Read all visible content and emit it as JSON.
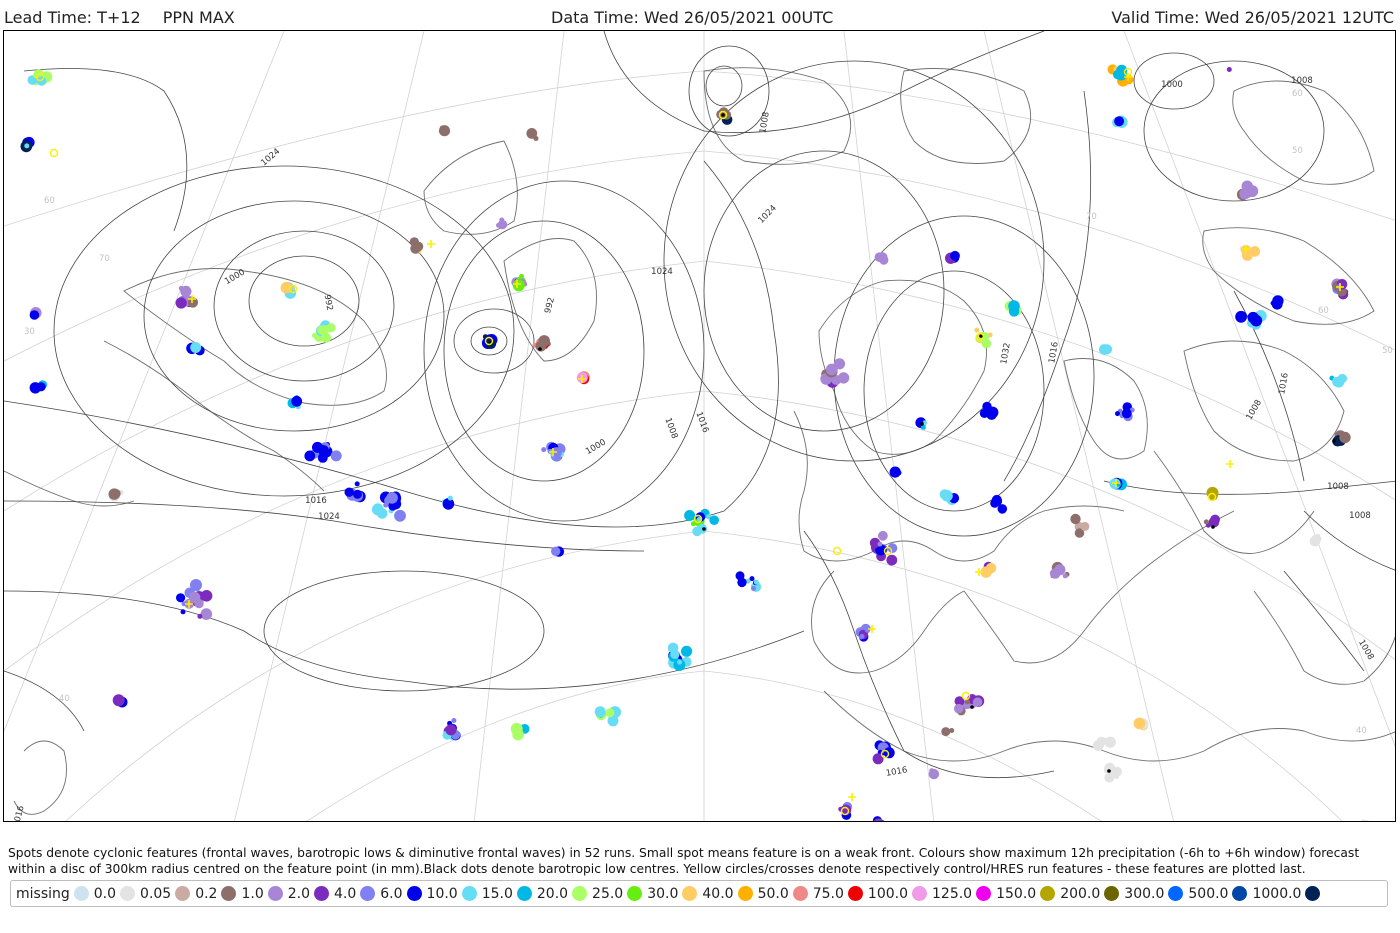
{
  "header": {
    "lead_time": "Lead Time: T+12",
    "product": "PPN MAX",
    "data_time": "Data Time: Wed 26/05/2021 00UTC",
    "valid_time": "Valid Time: Wed 26/05/2021 12UTC"
  },
  "map": {
    "isobar_labels": [
      "1024",
      "1000",
      "992",
      "1016",
      "1008",
      "992",
      "1000",
      "1008",
      "1016",
      "1024",
      "1032",
      "1024",
      "1008",
      "1000",
      "1008",
      "1016",
      "1016",
      "1008",
      "1008",
      "1024",
      "1016",
      "1008",
      "1016"
    ],
    "lat_labels": [
      "60",
      "70",
      "30",
      "40",
      "50",
      "60",
      "70",
      "60",
      "50",
      "40"
    ],
    "color_map": {
      "missing": "#cfe3ee",
      "0.0": "#e3e3e3",
      "0.05": "#c9aba2",
      "0.2": "#8c6f6a",
      "1.0": "#a886d6",
      "2.0": "#7b2cbf",
      "4.0": "#8080f0",
      "6.0": "#0000ee",
      "10.0": "#66ddf5",
      "15.0": "#00b8e6",
      "20.0": "#aaff66",
      "25.0": "#66ee11",
      "30.0": "#ffcc66",
      "40.0": "#ffb000",
      "50.0": "#f08888",
      "75.0": "#ee0000",
      "100.0": "#f09ae8",
      "125.0": "#ee00ee",
      "150.0": "#b3a600",
      "200.0": "#6b6400",
      "300.0": "#0066ff",
      "500.0": "#0047a6",
      "1000.0": "#002255"
    }
  },
  "caption": "Spots denote cyclonic features (frontal waves, barotropic lows & diminutive frontal waves) in 52 runs. Small spot means feature is on a weak front. Colours show maximum 12h precipitation (-6h to +6h window) forecast within a disc of 300km radius centred on the feature point (in mm).Black dots denote barotropic low centres. Yellow circles/crosses denote respectively control/HRES run features - these features are plotted last.",
  "legend": [
    {
      "label": "missing",
      "color": "#cfe3ee"
    },
    {
      "label": "0.0",
      "color": "#e3e3e3"
    },
    {
      "label": "0.05",
      "color": "#c9aba2"
    },
    {
      "label": "0.2",
      "color": "#8c6f6a"
    },
    {
      "label": "1.0",
      "color": "#a886d6"
    },
    {
      "label": "2.0",
      "color": "#7b2cbf"
    },
    {
      "label": "4.0",
      "color": "#8080f0"
    },
    {
      "label": "6.0",
      "color": "#0000ee"
    },
    {
      "label": "10.0",
      "color": "#66ddf5"
    },
    {
      "label": "15.0",
      "color": "#00b8e6"
    },
    {
      "label": "20.0",
      "color": "#aaff66"
    },
    {
      "label": "25.0",
      "color": "#66ee11"
    },
    {
      "label": "30.0",
      "color": "#ffcc66"
    },
    {
      "label": "40.0",
      "color": "#ffb000"
    },
    {
      "label": "50.0",
      "color": "#f08888"
    },
    {
      "label": "75.0",
      "color": "#ee0000"
    },
    {
      "label": "100.0",
      "color": "#f09ae8"
    },
    {
      "label": "125.0",
      "color": "#ee00ee"
    },
    {
      "label": "150.0",
      "color": "#b3a600"
    },
    {
      "label": "200.0",
      "color": "#6b6400"
    },
    {
      "label": "300.0",
      "color": "#0066ff"
    },
    {
      "label": "500.0",
      "color": "#0047a6"
    },
    {
      "label": "1000.0",
      "color": "#002255"
    }
  ]
}
